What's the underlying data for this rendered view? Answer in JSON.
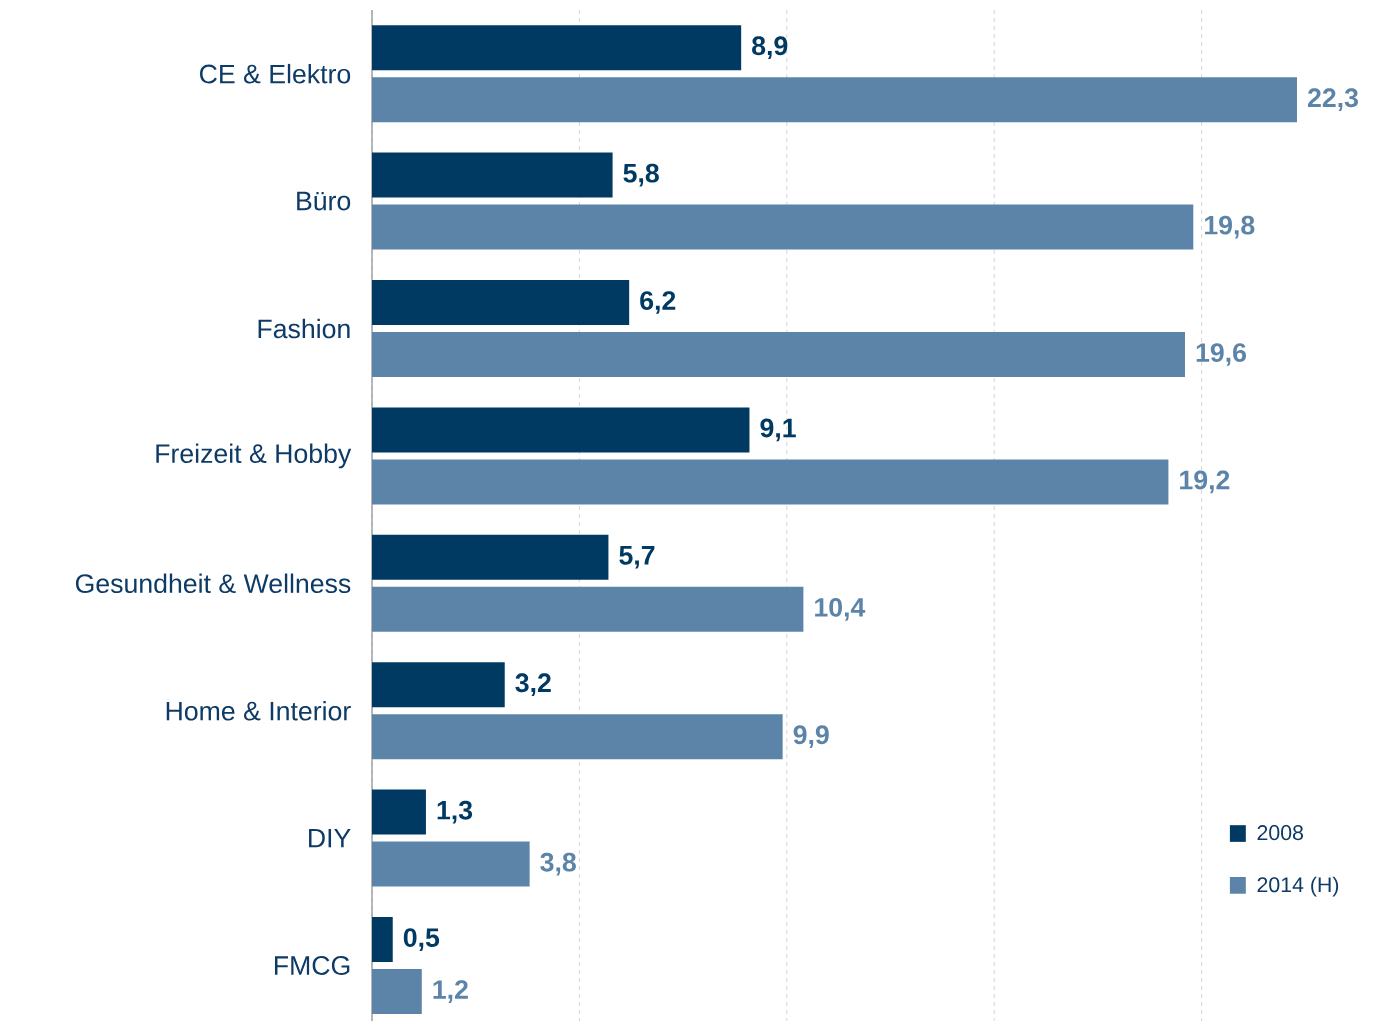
{
  "chart_data": {
    "type": "bar",
    "orientation": "horizontal",
    "categories": [
      "CE & Elektro",
      "Büro",
      "Fashion",
      "Freizeit & Hobby",
      "Gesundheit & Wellness",
      "Home & Interior",
      "DIY",
      "FMCG"
    ],
    "series": [
      {
        "name": "2008",
        "color": "#003a63",
        "values": [
          8.9,
          5.8,
          6.2,
          9.1,
          5.7,
          3.2,
          1.3,
          0.5
        ],
        "value_labels": [
          "8,9",
          "5,8",
          "6,2",
          "9,1",
          "5,7",
          "3,2",
          "1,3",
          "0,5"
        ]
      },
      {
        "name": "2014 (H)",
        "color": "#5b84a8",
        "values": [
          22.3,
          19.8,
          19.6,
          19.2,
          10.4,
          9.9,
          3.8,
          1.2
        ],
        "value_labels": [
          "22,3",
          "19,8",
          "19,6",
          "19,2",
          "10,4",
          "9,9",
          "3,8",
          "1,2"
        ]
      }
    ],
    "tick_labels": "y",
    "grid": "x",
    "legend": "bottom right"
  }
}
